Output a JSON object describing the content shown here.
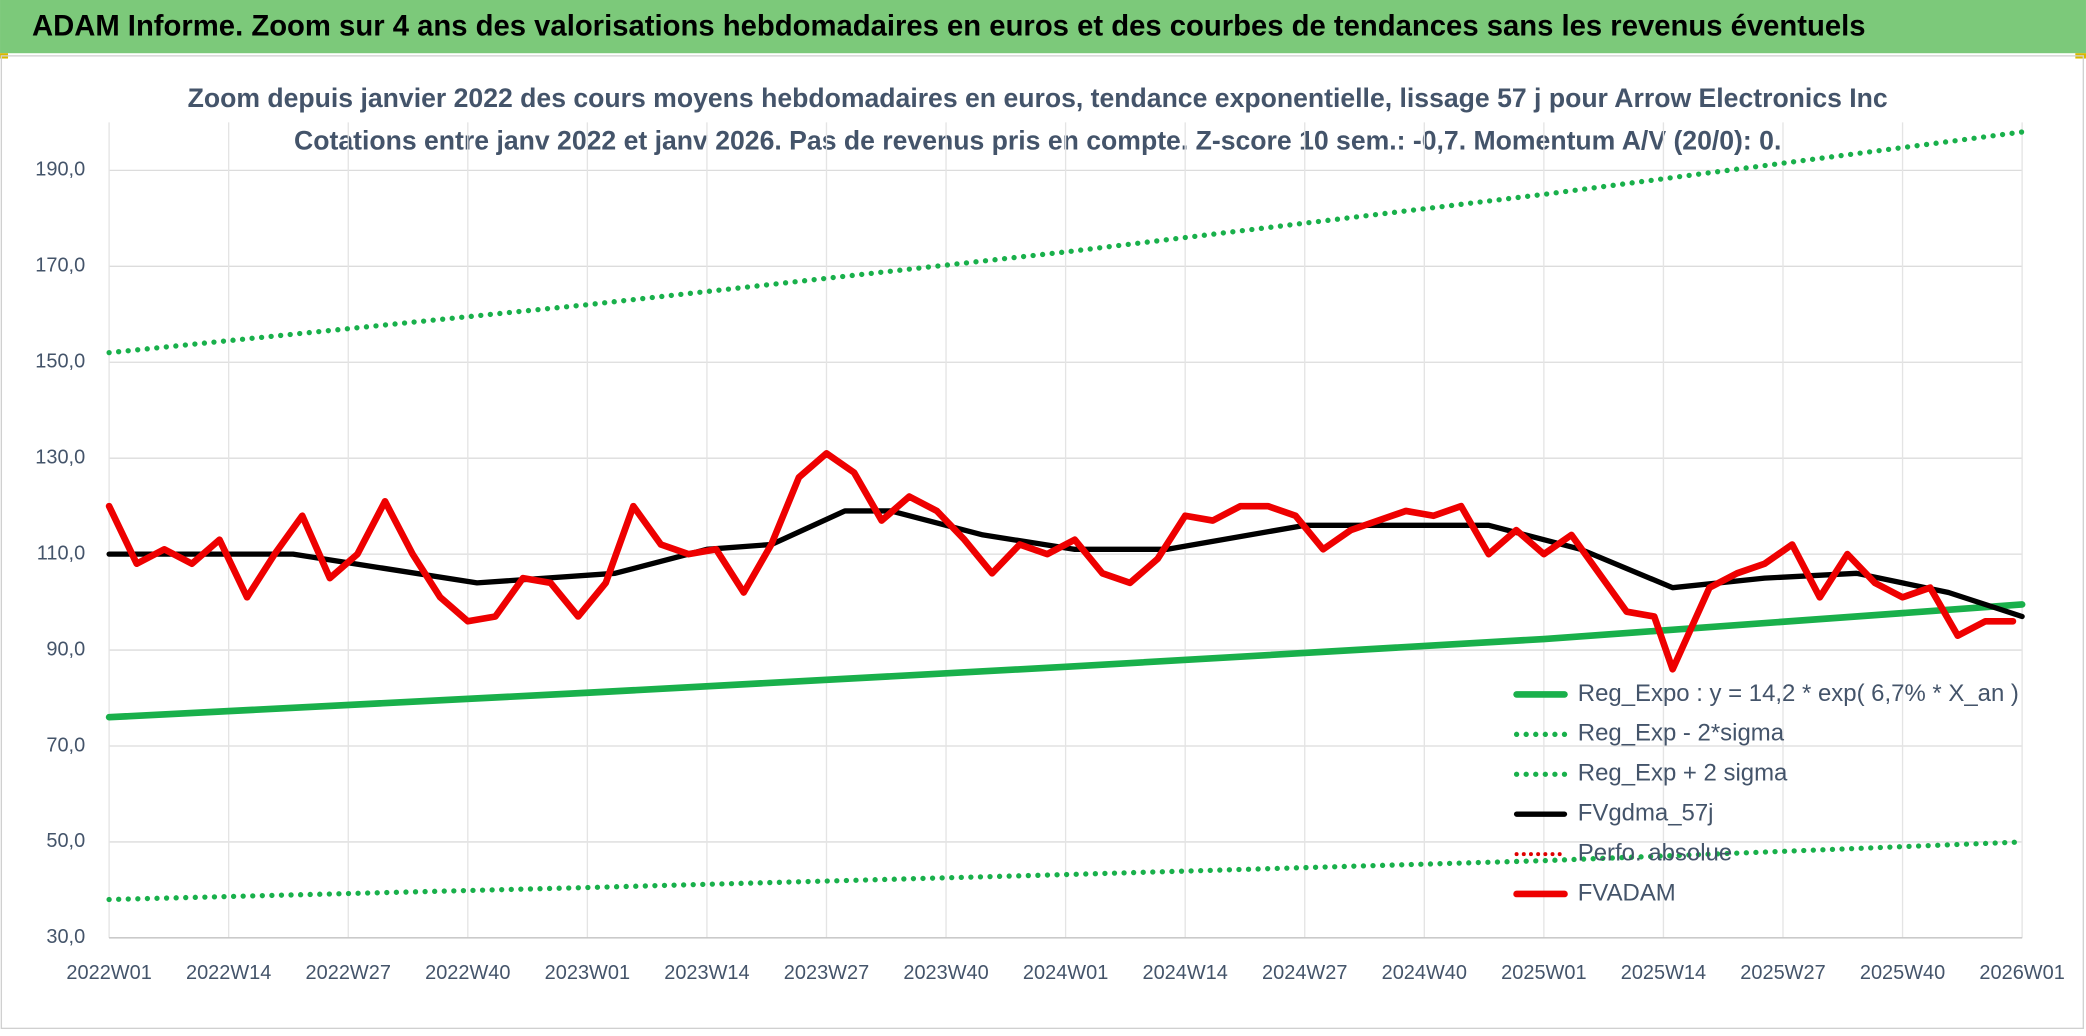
{
  "chart_data": {
    "type": "line",
    "header": "ADAM Informe. Zoom sur 4 ans des valorisations hebdomadaires en euros et des courbes de tendances sans les revenus éventuels",
    "title": "Zoom depuis janvier 2022 des cours moyens hebdomadaires en euros, tendance exponentielle, lissage 57 j pour Arrow Electronics Inc",
    "subtitle": "Cotations entre janv 2022 et janv 2026. Pas de revenus pris en compte. Z-score 10 sem.: -0,7. Momentum A/V (20/0): 0.",
    "xlim": [
      0,
      208
    ],
    "xticks": [
      {
        "value": 0,
        "label": "2022W01"
      },
      {
        "value": 13,
        "label": "2022W14"
      },
      {
        "value": 26,
        "label": "2022W27"
      },
      {
        "value": 39,
        "label": "2022W40"
      },
      {
        "value": 52,
        "label": "2023W01"
      },
      {
        "value": 65,
        "label": "2023W14"
      },
      {
        "value": 78,
        "label": "2023W27"
      },
      {
        "value": 91,
        "label": "2023W40"
      },
      {
        "value": 104,
        "label": "2024W01"
      },
      {
        "value": 117,
        "label": "2024W14"
      },
      {
        "value": 130,
        "label": "2024W27"
      },
      {
        "value": 143,
        "label": "2024W40"
      },
      {
        "value": 156,
        "label": "2025W01"
      },
      {
        "value": 169,
        "label": "2025W14"
      },
      {
        "value": 182,
        "label": "2025W27"
      },
      {
        "value": 195,
        "label": "2025W40"
      },
      {
        "value": 208,
        "label": "2026W01"
      }
    ],
    "ylim": [
      30,
      200
    ],
    "yticks": [
      {
        "value": 30,
        "label": "30,0"
      },
      {
        "value": 50,
        "label": "50,0"
      },
      {
        "value": 70,
        "label": "70,0"
      },
      {
        "value": 90,
        "label": "90,0"
      },
      {
        "value": 110,
        "label": "110,0"
      },
      {
        "value": 130,
        "label": "130,0"
      },
      {
        "value": 150,
        "label": "150,0"
      },
      {
        "value": 170,
        "label": "170,0"
      },
      {
        "value": 190,
        "label": "190,0"
      }
    ],
    "grid": true,
    "legend": "lower right",
    "series": [
      {
        "name": "Reg_Expo : y = 14,2 * exp( 6,7% *  X_an )",
        "color": "#19b04b",
        "style": "solid",
        "width": 5,
        "x": [
          0,
          52,
          104,
          156,
          208
        ],
        "values": [
          76,
          81.1,
          86.5,
          92.3,
          99.5
        ]
      },
      {
        "name": "Reg_Exp - 2*sigma",
        "color": "#19b04b",
        "style": "dotted",
        "width": 4,
        "x": [
          0,
          52,
          104,
          156,
          208
        ],
        "values": [
          38,
          40.5,
          43.2,
          46.1,
          50
        ]
      },
      {
        "name": "Reg_Exp + 2 sigma",
        "color": "#19b04b",
        "style": "dotted",
        "width": 4,
        "x": [
          0,
          52,
          104,
          156,
          208
        ],
        "values": [
          152,
          162,
          173,
          185,
          198
        ]
      },
      {
        "name": "FVgdma_57j",
        "color": "#000000",
        "style": "solid",
        "width": 4,
        "x": [
          0,
          20,
          40,
          55,
          65,
          72,
          80,
          85,
          95,
          105,
          115,
          130,
          140,
          150,
          160,
          170,
          180,
          190,
          200,
          208
        ],
        "values": [
          110,
          110,
          104,
          106,
          111,
          112,
          119,
          119,
          114,
          111,
          111,
          116,
          116,
          116,
          111,
          103,
          105,
          106,
          102,
          97
        ]
      },
      {
        "name": "Perfo. absolue",
        "color": "#e00000",
        "style": "dotted",
        "width": 3,
        "x": [],
        "values": []
      },
      {
        "name": "FVADAM",
        "color": "#ee0000",
        "style": "solid",
        "width": 5,
        "x": [
          0,
          3,
          6,
          9,
          12,
          15,
          18,
          21,
          24,
          27,
          30,
          33,
          36,
          39,
          42,
          45,
          48,
          51,
          54,
          57,
          60,
          63,
          66,
          69,
          72,
          75,
          78,
          81,
          84,
          87,
          90,
          93,
          96,
          99,
          102,
          105,
          108,
          111,
          114,
          117,
          120,
          123,
          126,
          129,
          132,
          135,
          138,
          141,
          144,
          147,
          150,
          153,
          156,
          159,
          162,
          165,
          168,
          170,
          174,
          177,
          180,
          183,
          186,
          189,
          192,
          195,
          198,
          201,
          204,
          207
        ],
        "values": [
          120,
          108,
          111,
          108,
          113,
          101,
          110,
          118,
          105,
          110,
          121,
          110,
          101,
          96,
          97,
          105,
          104,
          97,
          104,
          120,
          112,
          110,
          111,
          102,
          112,
          126,
          131,
          127,
          117,
          122,
          119,
          113,
          106,
          112,
          110,
          113,
          106,
          104,
          109,
          118,
          117,
          120,
          120,
          118,
          111,
          115,
          117,
          119,
          118,
          120,
          110,
          115,
          110,
          114,
          106,
          98,
          97,
          86,
          103,
          106,
          108,
          112,
          101,
          110,
          104,
          101,
          103,
          93,
          96,
          96
        ]
      }
    ]
  }
}
